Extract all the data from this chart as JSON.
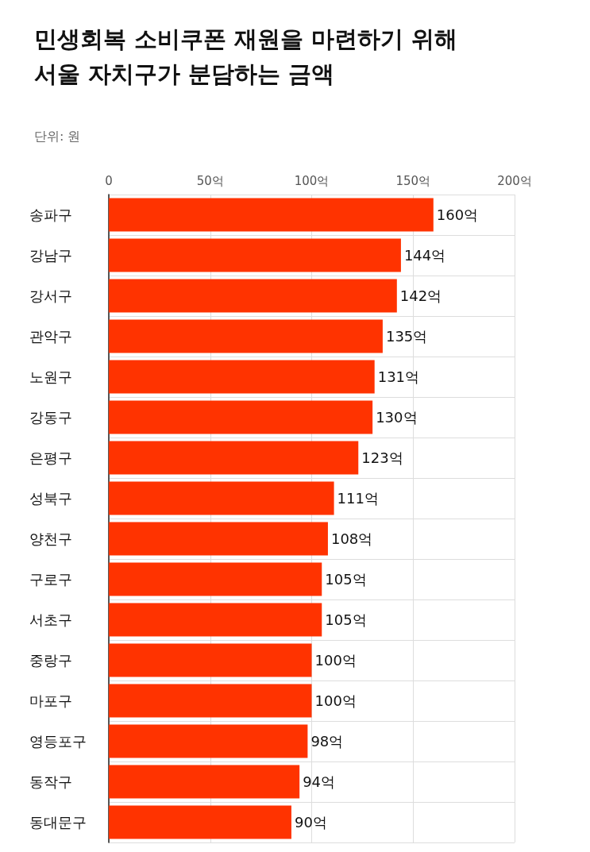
{
  "chart_data": {
    "type": "bar",
    "orientation": "horizontal",
    "title": "민생회복 소비쿠폰 재원을 마련하기 위해\n서울 자치구가 분담하는 금액",
    "subtitle": "단위: 원",
    "categories": [
      "송파구",
      "강남구",
      "강서구",
      "관악구",
      "노원구",
      "강동구",
      "은평구",
      "성북구",
      "양천구",
      "구로구",
      "서초구",
      "중랑구",
      "마포구",
      "영등포구",
      "동작구",
      "동대문구"
    ],
    "values": [
      160,
      144,
      142,
      135,
      131,
      130,
      123,
      111,
      108,
      105,
      105,
      100,
      100,
      98,
      94,
      90
    ],
    "value_labels": [
      "160억",
      "144억",
      "142억",
      "135억",
      "131억",
      "130억",
      "123억",
      "111억",
      "108억",
      "105억",
      "105억",
      "100억",
      "100억",
      "98억",
      "94억",
      "90억"
    ],
    "color": "#ff3300",
    "xlim": [
      0,
      200
    ],
    "xticks": [
      0,
      {
        "value": 50,
        "label": "50억"
      },
      {
        "value": 100,
        "label": "100억"
      },
      {
        "value": 150,
        "label": "150억"
      },
      {
        "value": 200,
        "label": "200억"
      }
    ],
    "grid": true
  }
}
